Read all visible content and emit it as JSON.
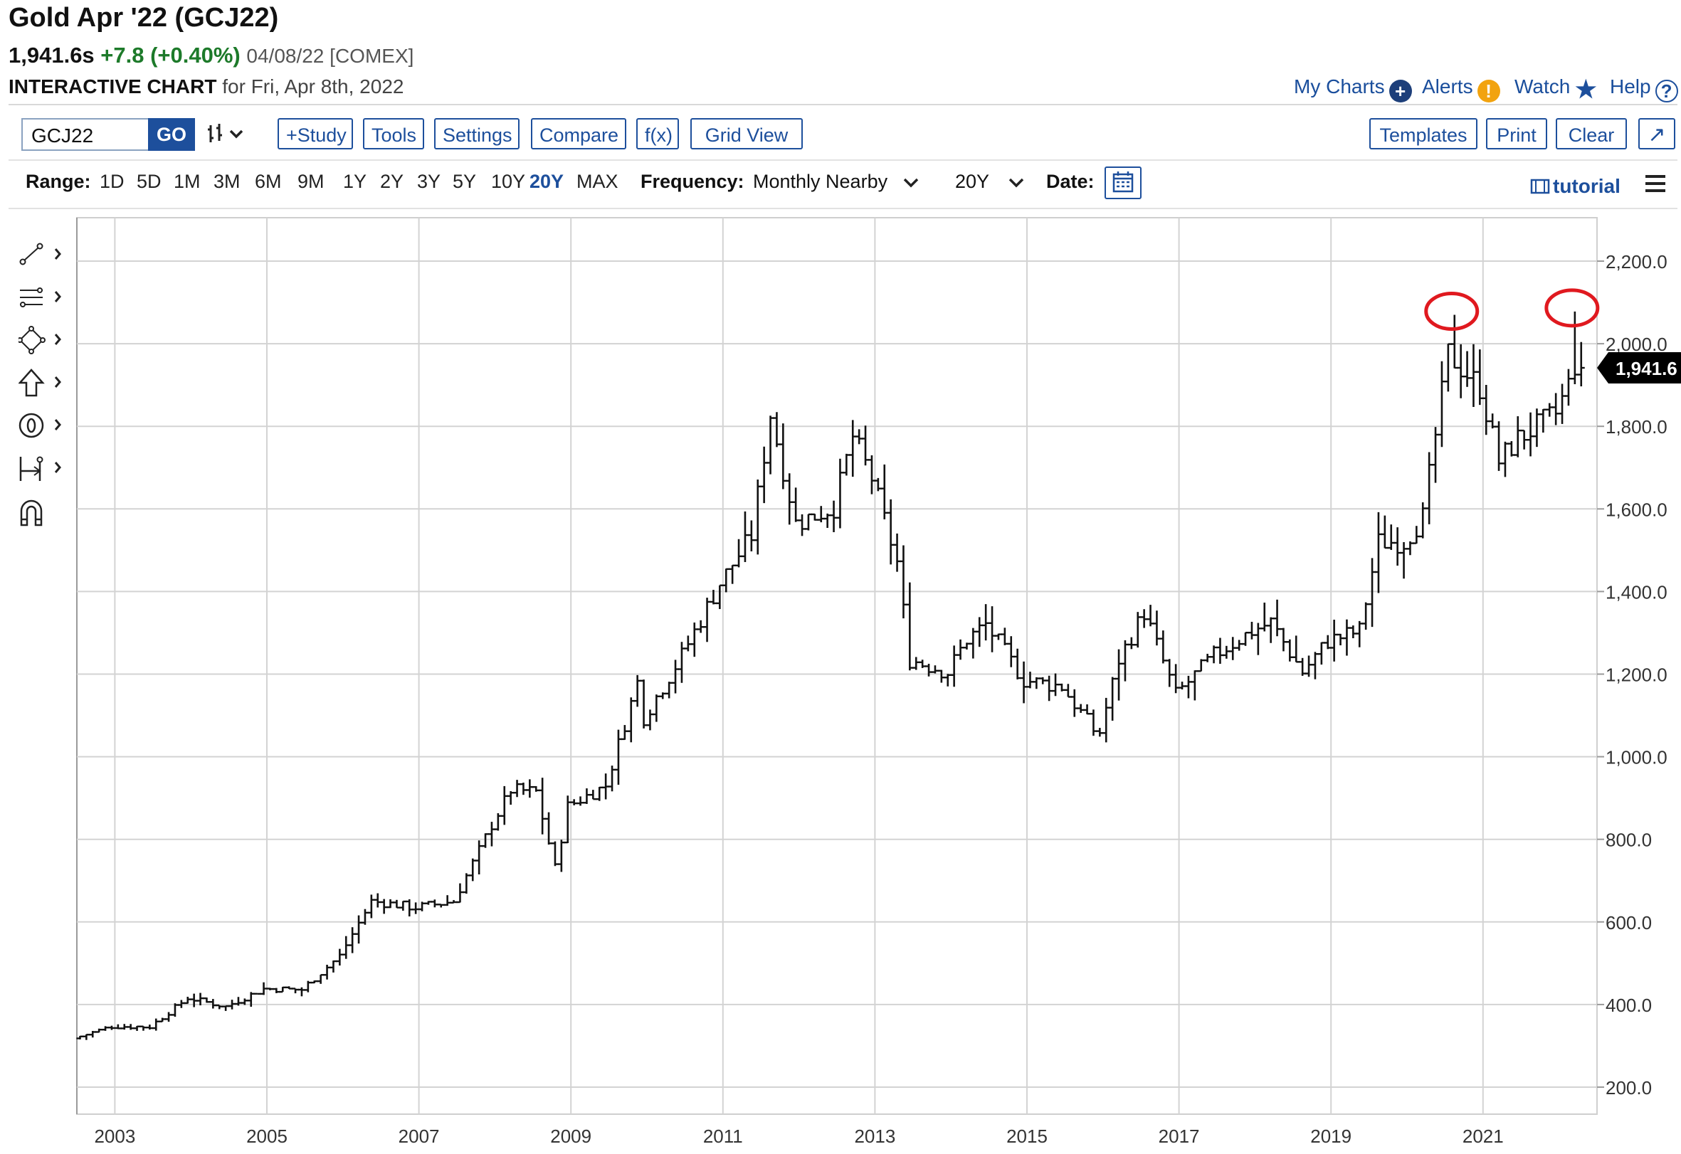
{
  "header": {
    "title": "Gold Apr '22 (GCJ22)",
    "price": "1,941.6s",
    "change": "+7.8 (+0.40%)",
    "meta": "04/08/22 [COMEX]",
    "subtitle_bold": "INTERACTIVE CHART",
    "subtitle_rest": "for Fri, Apr 8th, 2022",
    "links": {
      "my_charts": "My Charts",
      "alerts": "Alerts",
      "watch": "Watch",
      "help": "Help"
    }
  },
  "toolbar": {
    "symbol": "GCJ22",
    "go": "GO",
    "study": "+Study",
    "tools": "Tools",
    "settings": "Settings",
    "compare": "Compare",
    "fx": "f(x)",
    "grid_view": "Grid View",
    "templates": "Templates",
    "print": "Print",
    "clear": "Clear"
  },
  "range_bar": {
    "range_label": "Range:",
    "ranges": [
      "1D",
      "5D",
      "1M",
      "3M",
      "6M",
      "9M",
      "1Y",
      "2Y",
      "3Y",
      "5Y",
      "10Y",
      "20Y",
      "MAX"
    ],
    "active_range": "20Y",
    "frequency_label": "Frequency:",
    "frequency": "Monthly Nearby",
    "period": "20Y",
    "date_label": "Date:",
    "tutorial": "tutorial"
  },
  "left_tools": [
    "line-tool-icon",
    "fib-tool-icon",
    "shape-tool-icon",
    "arrow-tool-icon",
    "text-tool-icon",
    "measure-tool-icon",
    "magnet-icon"
  ],
  "colors": {
    "brand": "#1d4f9c",
    "positive": "#1d7a2a",
    "bars": "#111111",
    "grid": "#d0d0d0",
    "highlight": "#e0191f"
  },
  "chart_data": {
    "type": "ohlc",
    "title": "Gold Apr '22 (GCJ22)",
    "frequency": "monthly",
    "xlim": [
      2002.5,
      2022.5
    ],
    "ylim": [
      150,
      2280
    ],
    "y_ticks": [
      200,
      400,
      600,
      800,
      1000,
      1200,
      1400,
      1600,
      1800,
      2000,
      2200
    ],
    "y_tick_labels": [
      "200.0",
      "400.0",
      "600.0",
      "800.0",
      "1,000.0",
      "1,200.0",
      "1,400.0",
      "1,600.0",
      "1,800.0",
      "2,000.0",
      "2,200.0"
    ],
    "x_ticks": [
      2003,
      2005,
      2007,
      2009,
      2011,
      2013,
      2015,
      2017,
      2019,
      2021
    ],
    "x_tick_labels": [
      "2003",
      "2005",
      "2007",
      "2009",
      "2011",
      "2013",
      "2015",
      "2017",
      "2019",
      "2021"
    ],
    "grid": true,
    "last_price": 1941.6,
    "last_price_label": "1,941.6",
    "highlighted_highs": [
      {
        "date": "2020-08",
        "value": 2070
      },
      {
        "date": "2022-03",
        "value": 2078
      }
    ],
    "month_close_anchors": [
      [
        "2002-06",
        318
      ],
      [
        "2002-12",
        347
      ],
      [
        "2003-06",
        346
      ],
      [
        "2003-12",
        416
      ],
      [
        "2004-06",
        395
      ],
      [
        "2004-12",
        438
      ],
      [
        "2005-06",
        436
      ],
      [
        "2005-12",
        518
      ],
      [
        "2006-05",
        650
      ],
      [
        "2006-12",
        635
      ],
      [
        "2007-06",
        650
      ],
      [
        "2007-12",
        835
      ],
      [
        "2008-03",
        920
      ],
      [
        "2008-07",
        915
      ],
      [
        "2008-10",
        730
      ],
      [
        "2008-12",
        880
      ],
      [
        "2009-06",
        930
      ],
      [
        "2009-11",
        1180
      ],
      [
        "2009-12",
        1095
      ],
      [
        "2010-06",
        1245
      ],
      [
        "2010-12",
        1420
      ],
      [
        "2011-05",
        1535
      ],
      [
        "2011-08",
        1830
      ],
      [
        "2011-12",
        1565
      ],
      [
        "2012-06",
        1605
      ],
      [
        "2012-09",
        1775
      ],
      [
        "2012-12",
        1675
      ],
      [
        "2013-04",
        1470
      ],
      [
        "2013-06",
        1235
      ],
      [
        "2013-12",
        1205
      ],
      [
        "2014-03",
        1285
      ],
      [
        "2014-06",
        1320
      ],
      [
        "2014-12",
        1185
      ],
      [
        "2015-06",
        1170
      ],
      [
        "2015-11",
        1065
      ],
      [
        "2015-12",
        1060
      ],
      [
        "2016-03",
        1235
      ],
      [
        "2016-07",
        1350
      ],
      [
        "2016-12",
        1150
      ],
      [
        "2017-06",
        1245
      ],
      [
        "2017-12",
        1305
      ],
      [
        "2018-03",
        1325
      ],
      [
        "2018-08",
        1205
      ],
      [
        "2018-12",
        1280
      ],
      [
        "2019-05",
        1305
      ],
      [
        "2019-08",
        1520
      ],
      [
        "2019-12",
        1520
      ],
      [
        "2020-03",
        1580
      ],
      [
        "2020-07",
        1975
      ],
      [
        "2020-12",
        1895
      ],
      [
        "2021-03",
        1715
      ],
      [
        "2021-06",
        1770
      ],
      [
        "2021-12",
        1830
      ],
      [
        "2022-02",
        1900
      ],
      [
        "2022-03",
        1950
      ],
      [
        "2022-04",
        1941.6
      ]
    ]
  }
}
